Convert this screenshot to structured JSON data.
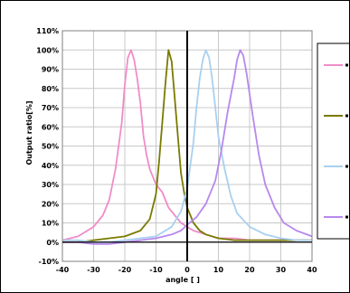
{
  "chart_data": {
    "type": "line",
    "title": "",
    "xlabel": "angle [ ]",
    "ylabel": "Output ratio[%]",
    "xlim": [
      -40,
      40
    ],
    "ylim": [
      -10,
      110
    ],
    "x_ticks": [
      -40,
      -30,
      -20,
      -10,
      0,
      10,
      20,
      30,
      40
    ],
    "x_tick_labels": [
      "-40",
      "-30",
      "-20",
      "-10",
      "0",
      "10",
      "20",
      "30",
      "40"
    ],
    "y_ticks": [
      -10,
      0,
      10,
      20,
      30,
      40,
      50,
      60,
      70,
      80,
      90,
      100,
      110
    ],
    "y_tick_labels": [
      "-10%",
      "0%",
      "10%",
      "20%",
      "30%",
      "40%",
      "50%",
      "60%",
      "70%",
      "80%",
      "90%",
      "100%",
      "110%"
    ],
    "grid": true,
    "legend_position": "right",
    "series": [
      {
        "color": "#f08cc8",
        "x": [
          -40,
          -35,
          -30,
          -27,
          -25,
          -23,
          -21,
          -20,
          -19,
          -18,
          -17,
          -16,
          -15,
          -14,
          -13,
          -12,
          -10,
          -8,
          -6,
          -4,
          -2,
          0,
          2,
          4,
          6,
          10,
          15,
          20,
          25,
          30,
          35,
          40
        ],
        "y": [
          1,
          3,
          8,
          14,
          22,
          38,
          62,
          82,
          96,
          100,
          95,
          85,
          72,
          55,
          45,
          38,
          30,
          26,
          18,
          14,
          10,
          8,
          6,
          5,
          4,
          2,
          2,
          1,
          1,
          1,
          1,
          1
        ]
      },
      {
        "color": "#7a7a00",
        "x": [
          -40,
          -35,
          -30,
          -25,
          -20,
          -15,
          -12,
          -10,
          -9,
          -8,
          -7,
          -6,
          -5,
          -4,
          -3,
          -2,
          -1,
          0,
          2,
          4,
          6,
          10,
          15,
          20,
          25,
          30,
          35,
          40
        ],
        "y": [
          0,
          0,
          1,
          2,
          3,
          6,
          12,
          25,
          42,
          62,
          82,
          100,
          94,
          75,
          55,
          36,
          26,
          18,
          10,
          6,
          4,
          2,
          1,
          1,
          1,
          1,
          1,
          1
        ]
      },
      {
        "color": "#a8d0f0",
        "x": [
          -40,
          -35,
          -30,
          -25,
          -20,
          -15,
          -10,
          -5,
          -2,
          0,
          2,
          3,
          4,
          5,
          6,
          7,
          8,
          9,
          10,
          12,
          14,
          16,
          20,
          25,
          30,
          35,
          40
        ],
        "y": [
          1,
          1,
          0,
          0,
          1,
          2,
          3,
          8,
          16,
          28,
          52,
          70,
          85,
          95,
          100,
          96,
          85,
          70,
          55,
          38,
          24,
          15,
          8,
          4,
          2,
          1,
          1
        ]
      },
      {
        "color": "#b888ec",
        "x": [
          -40,
          -35,
          -30,
          -25,
          -20,
          -15,
          -10,
          -5,
          -2,
          0,
          3,
          6,
          9,
          11,
          13,
          15,
          16,
          17,
          18,
          19,
          21,
          23,
          25,
          28,
          31,
          35,
          40
        ],
        "y": [
          0,
          0,
          -1,
          -1,
          0,
          1,
          2,
          4,
          6,
          9,
          13,
          20,
          32,
          48,
          68,
          85,
          95,
          100,
          97,
          88,
          66,
          45,
          30,
          18,
          10,
          6,
          3
        ]
      }
    ]
  }
}
